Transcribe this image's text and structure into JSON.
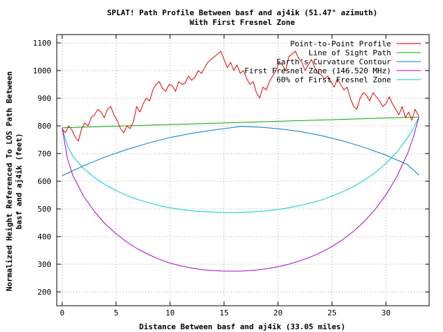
{
  "chart_data": {
    "type": "line",
    "title": "SPLAT! Path Profile Between basf and aj4ik (51.47° azimuth)",
    "subtitle": "With First Fresnel Zone",
    "xlabel": "Distance Between basf and aj4ik (33.05 miles)",
    "ylabel_line1": "Normalized Height Referenced To LOS Path Between",
    "ylabel_line2": "basf and aj4ik (feet)",
    "xlim": [
      -0.5,
      34.0
    ],
    "ylim": [
      150,
      1130
    ],
    "xticks": [
      0,
      5,
      10,
      15,
      20,
      25,
      30
    ],
    "yticks": [
      200,
      300,
      400,
      500,
      600,
      700,
      800,
      900,
      1000,
      1100
    ],
    "grid": true,
    "legend_position": "top-right",
    "colors": {
      "profile": "#dd0000",
      "los": "#00aa00",
      "curvature": "#0077cc",
      "fresnel": "#aa00cc",
      "fresnel60": "#00cccc"
    },
    "series": [
      {
        "key": "profile",
        "name": "Point-to-Point Profile",
        "x": [
          0,
          0.3,
          0.6,
          0.9,
          1.2,
          1.5,
          1.8,
          2.1,
          2.4,
          2.7,
          3.0,
          3.3,
          3.6,
          3.9,
          4.2,
          4.5,
          4.8,
          5.1,
          5.4,
          5.7,
          6.0,
          6.3,
          6.6,
          6.9,
          7.2,
          7.5,
          7.8,
          8.1,
          8.4,
          8.7,
          9.0,
          9.3,
          9.6,
          9.9,
          10.2,
          10.5,
          10.8,
          11.1,
          11.4,
          11.7,
          12.0,
          12.3,
          12.6,
          12.9,
          13.2,
          13.5,
          13.8,
          14.1,
          14.4,
          14.7,
          15.0,
          15.3,
          15.6,
          15.9,
          16.2,
          16.5,
          16.8,
          17.1,
          17.4,
          17.7,
          18.0,
          18.3,
          18.6,
          18.9,
          19.2,
          19.5,
          19.8,
          20.1,
          20.4,
          20.7,
          21.0,
          21.3,
          21.6,
          21.9,
          22.2,
          22.5,
          22.8,
          23.1,
          23.4,
          23.7,
          24.0,
          24.3,
          24.6,
          24.9,
          25.2,
          25.5,
          25.8,
          26.1,
          26.4,
          26.7,
          27.0,
          27.3,
          27.6,
          27.9,
          28.2,
          28.5,
          28.8,
          29.1,
          29.4,
          29.7,
          30.0,
          30.3,
          30.6,
          30.9,
          31.2,
          31.5,
          31.8,
          32.1,
          32.4,
          32.7,
          33.05
        ],
        "y": [
          790,
          775,
          800,
          785,
          760,
          745,
          790,
          810,
          800,
          830,
          840,
          860,
          850,
          830,
          860,
          870,
          840,
          820,
          790,
          775,
          800,
          790,
          815,
          870,
          850,
          880,
          900,
          890,
          930,
          950,
          960,
          935,
          925,
          950,
          945,
          925,
          960,
          950,
          955,
          980,
          965,
          975,
          1000,
          990,
          1010,
          1030,
          1040,
          1050,
          1060,
          1070,
          1040,
          1010,
          1030,
          1000,
          1020,
          990,
          1000,
          970,
          950,
          960,
          920,
          900,
          940,
          930,
          960,
          980,
          1000,
          1030,
          1020,
          1000,
          1050,
          1060,
          1070,
          1045,
          1030,
          1000,
          1020,
          1040,
          1010,
          990,
          985,
          970,
          980,
          960,
          940,
          970,
          950,
          930,
          940,
          900,
          870,
          860,
          900,
          920,
          910,
          890,
          920,
          905,
          890,
          870,
          880,
          905,
          880,
          860,
          840,
          870,
          830,
          850,
          820,
          860,
          835
        ],
        "fill": false
      },
      {
        "key": "los",
        "name": "Line of Sight Path",
        "x": [
          0,
          33.05
        ],
        "y": [
          793,
          832
        ]
      },
      {
        "key": "curvature",
        "name": "Earth's Curvature Contour",
        "x": [
          0,
          2,
          4,
          6,
          8,
          10,
          12,
          14,
          16,
          16.5,
          18,
          20,
          22,
          24,
          26,
          28,
          30,
          32,
          33.05
        ],
        "y": [
          620,
          656,
          688,
          715,
          738,
          758,
          773,
          785,
          795,
          798,
          796,
          790,
          780,
          765,
          746,
          722,
          694,
          660,
          622
        ]
      },
      {
        "key": "fresnel",
        "name": "First Fresnel Zone (146.520 MHz)",
        "x": [
          0,
          0.5,
          1,
          2,
          3,
          4,
          5,
          6,
          7,
          8,
          9,
          10,
          11,
          12,
          13,
          14,
          15,
          16,
          16.5,
          17,
          18,
          19,
          20,
          21,
          22,
          23,
          24,
          25,
          26,
          27,
          28,
          29,
          30,
          31,
          32,
          32.5,
          33.05
        ],
        "y": [
          793,
          680,
          620,
          545,
          490,
          445,
          410,
          380,
          355,
          335,
          318,
          304,
          294,
          286,
          280,
          277,
          275,
          275,
          275,
          276,
          279,
          284,
          291,
          300,
          312,
          326,
          343,
          364,
          389,
          419,
          455,
          498,
          551,
          616,
          700,
          755,
          832
        ]
      },
      {
        "key": "fresnel60",
        "name": "60% of First Fresnel Zone",
        "x": [
          0,
          0.5,
          1,
          2,
          3,
          4,
          5,
          6,
          7,
          8,
          9,
          10,
          11,
          12,
          13,
          14,
          15,
          16,
          16.5,
          17,
          18,
          19,
          20,
          21,
          22,
          23,
          24,
          25,
          26,
          27,
          28,
          29,
          30,
          31,
          32,
          32.5,
          33.05
        ],
        "y": [
          793,
          726,
          690,
          645,
          613,
          587,
          566,
          548,
          534,
          522,
          512,
          504,
          498,
          493,
          490,
          488,
          487,
          487,
          487,
          488,
          490,
          493,
          498,
          504,
          512,
          521,
          532,
          546,
          562,
          581,
          604,
          631,
          664,
          705,
          757,
          788,
          832
        ]
      }
    ]
  }
}
